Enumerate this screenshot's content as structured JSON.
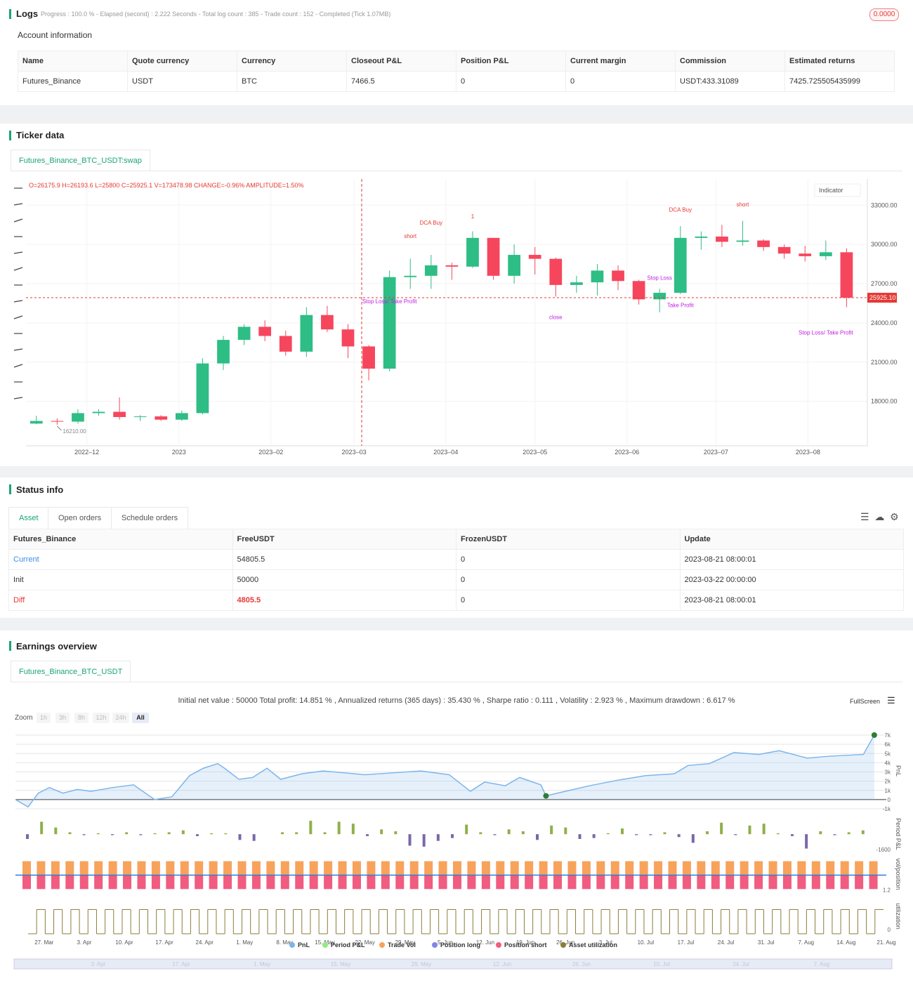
{
  "logs": {
    "title": "Logs",
    "progress": "Progress : 100.0 % - Elapsed (second) : 2.222 Seconds - Total log count : 385 - Trade count : 152 - Completed (Tick 1.07MB)",
    "badge": "0.0000"
  },
  "account": {
    "title": "Account information",
    "table": {
      "header": [
        "Name",
        "Quote currency",
        "Currency",
        "Closeout P&L",
        "Position P&L",
        "Current margin",
        "Commission",
        "Estimated returns"
      ],
      "rows": [
        [
          "Futures_Binance",
          "USDT",
          "BTC",
          "7466.5",
          "0",
          "0",
          "USDT:433.31089",
          "7425.725505435999"
        ]
      ]
    }
  },
  "ticker": {
    "title": "Ticker data",
    "tab": "Futures_Binance_BTC_USDT:swap",
    "indicator": "Indicator",
    "chart_data": {
      "type": "candlestick",
      "ohlc_label": "O=26175.9 H=26193.6 L=25800 C=25925.1 V=173478.98 CHANGE=-0.96% AMPLITUDE=1.50%",
      "up_color": "#2ebd85",
      "down_color": "#f6465d",
      "categories": [
        null,
        null,
        null,
        null,
        null,
        null,
        null,
        null,
        null,
        null,
        null,
        null,
        null,
        null,
        null,
        null,
        null,
        null,
        null,
        null,
        null,
        null,
        null,
        null,
        null,
        null,
        null,
        null,
        null,
        null,
        null,
        null,
        null,
        null,
        null,
        null,
        null,
        null,
        null,
        null
      ],
      "open": [
        16300,
        16500,
        16450,
        17100,
        17200,
        16800,
        16850,
        16600,
        17100,
        20900,
        22700,
        23700,
        23000,
        21800,
        24600,
        23500,
        22200,
        20500,
        27500,
        27600,
        28400,
        28300,
        30500,
        27600,
        29200,
        28900,
        26900,
        27100,
        28000,
        27200,
        25800,
        26300,
        30500,
        30600,
        30200,
        30300,
        29800,
        29300,
        29100,
        29400
      ],
      "high": [
        16900,
        16700,
        17400,
        17400,
        18300,
        16950,
        16950,
        17300,
        21300,
        23000,
        23900,
        24200,
        23400,
        25200,
        25300,
        23900,
        22300,
        28000,
        28900,
        29200,
        28600,
        31000,
        30500,
        30000,
        29800,
        29000,
        27600,
        28500,
        28400,
        27300,
        26600,
        31400,
        31000,
        31500,
        31800,
        30400,
        30000,
        29900,
        30300,
        29700
      ],
      "low": [
        16250,
        16210,
        16300,
        16900,
        16600,
        16500,
        16500,
        16500,
        17000,
        20400,
        22300,
        22600,
        21500,
        21400,
        23300,
        21300,
        19600,
        20300,
        26600,
        26600,
        27300,
        28200,
        27300,
        27000,
        27700,
        26000,
        26300,
        26100,
        26500,
        25400,
        24800,
        26200,
        29600,
        29800,
        29900,
        29500,
        28900,
        28700,
        28800,
        25200
      ],
      "close": [
        16500,
        16450,
        17100,
        17200,
        16800,
        16850,
        16600,
        17100,
        20900,
        22700,
        23700,
        23000,
        21800,
        24600,
        23500,
        22200,
        20500,
        27500,
        27600,
        28400,
        28300,
        30500,
        27600,
        29200,
        28900,
        26900,
        27100,
        28000,
        27200,
        25800,
        26300,
        30500,
        30600,
        30200,
        30300,
        29800,
        29300,
        29100,
        29400,
        25925.1
      ],
      "xlim": [
        -0.5,
        40
      ],
      "ylim": [
        14600,
        35000
      ],
      "yticks": [
        {
          "value": 18000,
          "label": "18000.00"
        },
        {
          "value": 21000,
          "label": "21000.00"
        },
        {
          "value": 24000,
          "label": "24000.00"
        },
        {
          "value": 27000,
          "label": "27000.00"
        },
        {
          "value": 30000,
          "label": "30000.00"
        },
        {
          "value": 33000,
          "label": "33000.00"
        }
      ],
      "xticks": [
        {
          "value": 2.43,
          "label": "2022–12"
        },
        {
          "value": 6.86,
          "label": "2023"
        },
        {
          "value": 11.29,
          "label": "2023–02"
        },
        {
          "value": 15.29,
          "label": "2023–03"
        },
        {
          "value": 19.71,
          "label": "2023–04"
        },
        {
          "value": 24,
          "label": "2023–05"
        },
        {
          "value": 28.43,
          "label": "2023–06"
        },
        {
          "value": 32.71,
          "label": "2023–07"
        },
        {
          "value": 37.14,
          "label": "2023–08"
        }
      ],
      "grid": true,
      "last_price": {
        "value": 25925.1,
        "label": "25925.10"
      },
      "low_marker": {
        "value": 16210,
        "label": "16210.00"
      },
      "annotations": [
        {
          "text": "DCA Buy",
          "x": 19,
          "y": 31500,
          "color": "#e53935"
        },
        {
          "text": "short",
          "x": 18,
          "y": 30500,
          "color": "#e53935"
        },
        {
          "text": "Stop Loss/ Take Profit",
          "x": 17,
          "y": 25500,
          "color": "#c020e0"
        },
        {
          "text": "close",
          "x": 25,
          "y": 24300,
          "color": "#c020e0"
        },
        {
          "text": "Take Profit",
          "x": 31,
          "y": 25200,
          "color": "#c020e0"
        },
        {
          "text": "DCA Buy",
          "x": 31,
          "y": 32500,
          "color": "#e53935"
        },
        {
          "text": "short",
          "x": 34,
          "y": 32900,
          "color": "#e53935"
        },
        {
          "text": "Stop Loss/ Take Profit",
          "x": 38,
          "y": 23100,
          "color": "#c020e0"
        },
        {
          "text": "1",
          "x": 21,
          "y": 32000,
          "color": "#e53935"
        },
        {
          "text": "Stop Loss",
          "x": 30,
          "y": 27300,
          "color": "#c020e0"
        }
      ]
    }
  },
  "status": {
    "title": "Status info",
    "tabs": [
      "Asset",
      "Open orders",
      "Schedule orders"
    ],
    "table": {
      "header": [
        "Futures_Binance",
        "FreeUSDT",
        "FrozenUSDT",
        "Update"
      ],
      "rows": [
        [
          "Current",
          "54805.5",
          "0",
          "2023-08-21 08:00:01"
        ],
        [
          "Init",
          "50000",
          "0",
          "2023-03-22 00:00:00"
        ],
        [
          "Diff",
          "4805.5",
          "0",
          "2023-08-21 08:00:01"
        ]
      ]
    }
  },
  "earnings": {
    "title": "Earnings overview",
    "tab": "Futures_Binance_BTC_USDT",
    "summary": "Initial net value : 50000 Total profit: 14.851 % , Annualized returns (365 days) : 35.430 % , Sharpe ratio : 0.111 , Volatility : 2.923 % , Maximum drawdown : 6.617 %",
    "fullscreen": "FullScreen",
    "zoom": "Zoom",
    "zoom_buttons": [
      "1h",
      "3h",
      "8h",
      "12h",
      "24h",
      "All"
    ],
    "legend": [
      {
        "name": "PnL",
        "color": "#7cb5ec"
      },
      {
        "name": "Period P&L",
        "color": "#90ed7d"
      },
      {
        "name": "Trade Vol",
        "color": "#f7a35c"
      },
      {
        "name": "Position long",
        "color": "#8085e9"
      },
      {
        "name": "Position short",
        "color": "#f15c80"
      },
      {
        "name": "Asset utilization",
        "color": "#8b7d3a"
      }
    ],
    "navigator_labels": [
      "3. Apr",
      "17. Apr",
      "1. May",
      "15. May",
      "29. May",
      "12. Jun",
      "26. Jun",
      "10. Jul",
      "24. Jul",
      "7. Aug"
    ],
    "chart_data": [
      {
        "type": "line",
        "y_label": "PnL",
        "color": "#7cb5ec",
        "marker_color": "#2e7d32",
        "x": [
          0,
          2.2,
          4,
          5.9,
          8.3,
          10.8,
          13.2,
          16.9,
          20.6,
          24.3,
          27.3,
          30.4,
          32.8,
          35.3,
          36.5,
          39,
          41.4,
          43.9,
          46.3,
          50,
          53.7,
          57.4,
          61,
          65.9,
          70.8,
          75.7,
          79.4,
          81.9,
          85.5,
          88,
          91.7,
          92.6,
          95.3,
          100.2,
          105.1,
          110,
          115,
          117.4,
          121.1,
          125.4,
          129.7,
          133.3,
          138.2,
          141.9,
          148,
          149.9
        ],
        "values": [
          0,
          -800,
          700,
          1300,
          700,
          1100,
          900,
          1300,
          1600,
          0,
          300,
          2600,
          3400,
          3900,
          3400,
          2200,
          2400,
          3400,
          2200,
          2800,
          3100,
          2900,
          2700,
          2900,
          3100,
          2700,
          900,
          1900,
          1500,
          2400,
          1600,
          400,
          800,
          1500,
          2100,
          2600,
          2800,
          3700,
          3900,
          5100,
          4900,
          5300,
          4500,
          4700,
          4900,
          7000
        ],
        "markers": [
          31,
          45
        ],
        "xlim": [
          0,
          152
        ],
        "ylim": [
          -1000,
          7000
        ],
        "yticks": [
          {
            "value": -1000,
            "label": "-1k"
          },
          0,
          {
            "value": 1000,
            "label": "1k"
          },
          {
            "value": 2000,
            "label": "2k"
          },
          {
            "value": 3000,
            "label": "3k"
          },
          {
            "value": 4000,
            "label": "4k"
          },
          {
            "value": 5000,
            "label": "5k"
          },
          {
            "value": 6000,
            "label": "6k"
          },
          {
            "value": 7000,
            "label": "7k"
          }
        ],
        "xticks": [
          {
            "value": 5,
            "label": "27. Mar"
          },
          {
            "value": 12,
            "label": "3. Apr"
          },
          {
            "value": 19,
            "label": "10. Apr"
          },
          {
            "value": 26,
            "label": "17. Apr"
          },
          {
            "value": 33,
            "label": "24. Apr"
          },
          {
            "value": 40,
            "label": "1. May"
          },
          {
            "value": 47,
            "label": "8. May"
          },
          {
            "value": 54,
            "label": "15. May"
          },
          {
            "value": 61,
            "label": "22. May"
          },
          {
            "value": 68,
            "label": "29. May"
          },
          {
            "value": 75,
            "label": "5. Jun"
          },
          {
            "value": 82,
            "label": "12. Jun"
          },
          {
            "value": 89,
            "label": "19. Jun"
          },
          {
            "value": 96,
            "label": "26. Jun"
          },
          {
            "value": 103,
            "label": "3. Jul"
          },
          {
            "value": 110,
            "label": "10. Jul"
          },
          {
            "value": 117,
            "label": "17. Jul"
          },
          {
            "value": 124,
            "label": "24. Jul"
          },
          {
            "value": 131,
            "label": "31. Jul"
          },
          {
            "value": 138,
            "label": "7. Aug"
          },
          {
            "value": 145,
            "label": "14. Aug"
          },
          {
            "value": 152,
            "label": "21. Aug"
          }
        ],
        "grid": true
      },
      {
        "type": "bar",
        "y_label": "Period P&L",
        "color": "#8fb04a",
        "negative_color": "#7a67a8",
        "values": [
          -500,
          1300,
          700,
          200,
          -100,
          100,
          -100,
          200,
          -100,
          100,
          200,
          400,
          -200,
          100,
          100,
          -600,
          -700,
          0,
          200,
          200,
          1400,
          200,
          1300,
          1100,
          -200,
          500,
          300,
          -1200,
          -1300,
          -700,
          -400,
          1000,
          200,
          -100,
          500,
          300,
          -600,
          900,
          700,
          -500,
          -400,
          100,
          600,
          -100,
          -100,
          200,
          -300,
          -900,
          300,
          1200,
          -100,
          900,
          1100,
          100,
          -200,
          -1500,
          300,
          -100,
          200,
          400
        ],
        "ylim": [
          -1600,
          1700
        ],
        "yticks": [
          -1600
        ]
      },
      {
        "type": "bar",
        "y_label": "vol/position",
        "series": [
          {
            "name": "Trade Vol",
            "color": "#f7a35c",
            "values": [
              1.2,
              1.2,
              1.2,
              1.2,
              1.2,
              1.2,
              1.2,
              1.2,
              1.2,
              1.2,
              1.2,
              1.2,
              1.2,
              1.2,
              1.2,
              1.2,
              1.2,
              1.2,
              1.2,
              1.2,
              1.2,
              1.2,
              1.2,
              1.2,
              1.2,
              1.2,
              1.2,
              1.2,
              1.2,
              1.2,
              1.2,
              1.2,
              1.2,
              1.2,
              1.2,
              1.2,
              1.2,
              1.2,
              1.2,
              1.2,
              1.2,
              1.2,
              1.2,
              1.2,
              1.2,
              1.2,
              1.2,
              1.2,
              1.2,
              1.2,
              1.2,
              1.2,
              1.2,
              1.2,
              1.2,
              1.2,
              1.2,
              1.2,
              1.2,
              1.2
            ]
          },
          {
            "name": "Position short",
            "color": "#f15c80",
            "values": [
              -1.2,
              -1.2,
              -1.2,
              -1.2,
              -1.2,
              -1.2,
              -1.2,
              -1.2,
              -1.2,
              -1.2,
              -1.2,
              -1.2,
              -1.2,
              -1.2,
              -1.2,
              -1.2,
              -1.2,
              -1.2,
              -1.2,
              -1.2,
              -1.2,
              -1.2,
              -1.2,
              -1.2,
              -1.2,
              -1.2,
              -1.2,
              -1.2,
              -1.2,
              -1.2,
              -1.2,
              -1.2,
              -1.2,
              -1.2,
              -1.2,
              -1.2,
              -1.2,
              -1.2,
              -1.2,
              -1.2,
              -1.2,
              -1.2,
              -1.2,
              -1.2,
              -1.2,
              -1.2,
              -1.2,
              -1.2,
              -1.2,
              -1.2,
              -1.2,
              -1.2,
              -1.2,
              -1.2,
              -1.2,
              -1.2,
              -1.2,
              -1.2,
              -1.2,
              -1.2
            ]
          }
        ],
        "ylim": [
          -1.3,
          1.3
        ],
        "yticks": [
          {
            "value": -1.2,
            "label": "1.2"
          }
        ]
      },
      {
        "type": "step",
        "y_label": "utilization",
        "color": "#8b7d3a",
        "values": [
          0,
          1,
          0,
          1,
          0,
          1,
          0,
          1,
          0,
          1,
          0,
          1,
          0,
          1,
          0,
          1,
          0,
          1,
          0,
          1,
          0,
          1,
          0,
          1,
          0,
          1,
          0,
          1,
          0,
          1,
          0,
          1,
          0,
          1,
          0,
          1,
          0,
          1,
          0,
          1,
          0,
          1,
          0,
          1,
          0,
          1,
          0,
          1,
          0,
          1,
          0,
          1,
          0,
          1,
          0,
          1,
          0,
          1,
          0,
          1,
          0,
          1,
          0,
          1,
          0,
          1,
          0,
          1,
          0,
          1,
          0,
          1,
          0,
          1,
          0,
          1,
          0,
          1,
          0,
          1,
          0,
          1,
          0,
          1,
          0,
          1,
          0,
          1,
          0,
          1,
          0,
          1,
          0,
          1,
          0,
          1,
          0,
          1,
          0,
          1
        ],
        "ylim": [
          0,
          1.1
        ],
        "yticks": [
          0
        ]
      }
    ]
  }
}
